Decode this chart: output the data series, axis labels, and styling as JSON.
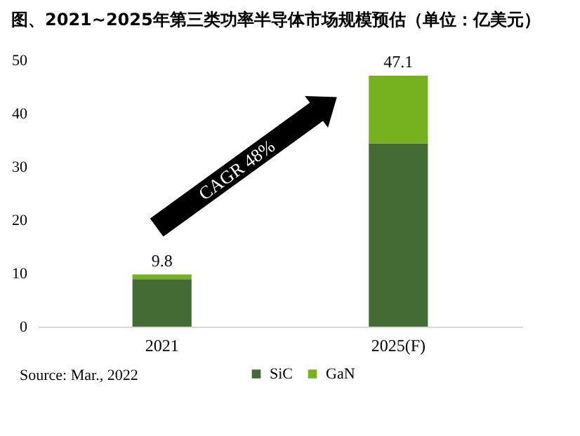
{
  "chart_data": {
    "type": "bar",
    "title": "图、2021~2025年第三类功率半导体市场规模预估（单位：亿美元）",
    "categories": [
      "2021",
      "2025(F)"
    ],
    "stacked": true,
    "series": [
      {
        "name": "SiC",
        "color": "#436b33",
        "values": [
          8.9,
          34.4
        ]
      },
      {
        "name": "GaN",
        "color": "#76b21f",
        "values": [
          0.9,
          12.7
        ]
      }
    ],
    "totals": [
      "9.8",
      "47.1"
    ],
    "ylim": [
      0,
      50
    ],
    "yticks": [
      0,
      10,
      20,
      30,
      40,
      50
    ],
    "grid": false,
    "legend": "bottom",
    "annotations": [
      "CAGR 48%",
      "Source: Mar., 2022"
    ]
  }
}
